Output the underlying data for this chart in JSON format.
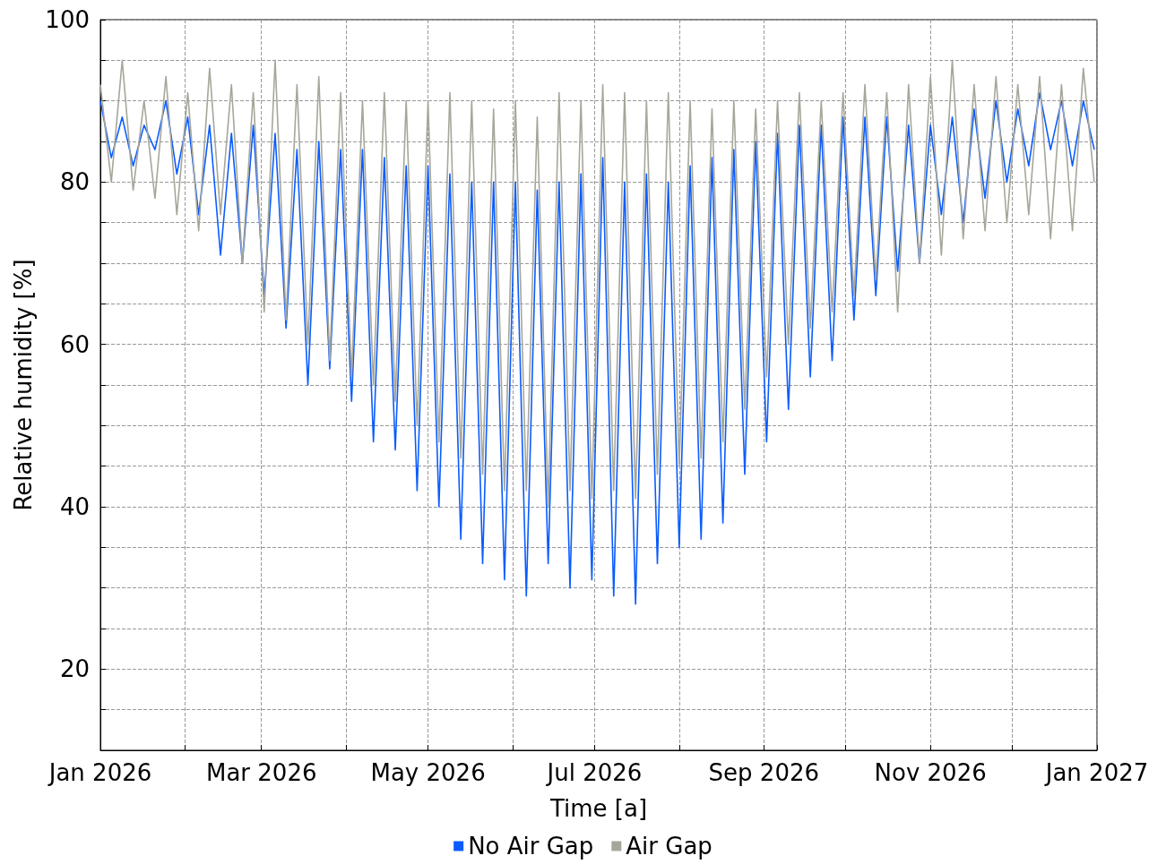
{
  "chart_data": {
    "type": "line",
    "xlabel": "Time [a]",
    "ylabel": "Relative humidity [%]",
    "x": [
      "2026-01-01",
      "2026-01-05",
      "2026-01-09",
      "2026-01-13",
      "2026-01-17",
      "2026-01-21",
      "2026-01-25",
      "2026-01-29",
      "2026-02-02",
      "2026-02-06",
      "2026-02-10",
      "2026-02-14",
      "2026-02-18",
      "2026-02-22",
      "2026-02-26",
      "2026-03-02",
      "2026-03-06",
      "2026-03-10",
      "2026-03-14",
      "2026-03-18",
      "2026-03-22",
      "2026-03-26",
      "2026-03-30",
      "2026-04-03",
      "2026-04-07",
      "2026-04-11",
      "2026-04-15",
      "2026-04-19",
      "2026-04-23",
      "2026-04-27",
      "2026-05-01",
      "2026-05-05",
      "2026-05-09",
      "2026-05-13",
      "2026-05-17",
      "2026-05-21",
      "2026-05-25",
      "2026-05-29",
      "2026-06-02",
      "2026-06-06",
      "2026-06-10",
      "2026-06-14",
      "2026-06-18",
      "2026-06-22",
      "2026-06-26",
      "2026-06-30",
      "2026-07-04",
      "2026-07-08",
      "2026-07-12",
      "2026-07-16",
      "2026-07-20",
      "2026-07-24",
      "2026-07-28",
      "2026-08-01",
      "2026-08-05",
      "2026-08-09",
      "2026-08-13",
      "2026-08-17",
      "2026-08-21",
      "2026-08-25",
      "2026-08-29",
      "2026-09-02",
      "2026-09-06",
      "2026-09-10",
      "2026-09-14",
      "2026-09-18",
      "2026-09-22",
      "2026-09-26",
      "2026-09-30",
      "2026-10-04",
      "2026-10-08",
      "2026-10-12",
      "2026-10-16",
      "2026-10-20",
      "2026-10-24",
      "2026-10-28",
      "2026-11-01",
      "2026-11-05",
      "2026-11-09",
      "2026-11-13",
      "2026-11-17",
      "2026-11-21",
      "2026-11-25",
      "2026-11-29",
      "2026-12-03",
      "2026-12-07",
      "2026-12-11",
      "2026-12-15",
      "2026-12-19",
      "2026-12-23",
      "2026-12-27",
      "2026-12-31"
    ],
    "series": [
      {
        "name": "No Air Gap",
        "color": "#0a5cff",
        "values": [
          90,
          83,
          88,
          82,
          87,
          84,
          90,
          81,
          88,
          76,
          87,
          71,
          86,
          70,
          87,
          66,
          86,
          62,
          84,
          55,
          85,
          57,
          84,
          53,
          84,
          48,
          83,
          47,
          82,
          42,
          82,
          40,
          81,
          36,
          80,
          33,
          80,
          31,
          80,
          29,
          79,
          33,
          80,
          30,
          81,
          31,
          83,
          29,
          80,
          28,
          81,
          33,
          80,
          35,
          82,
          36,
          83,
          38,
          84,
          44,
          85,
          48,
          86,
          52,
          87,
          56,
          87,
          58,
          88,
          63,
          88,
          66,
          88,
          69,
          87,
          70,
          87,
          76,
          88,
          75,
          89,
          78,
          90,
          80,
          89,
          82,
          91,
          84,
          90,
          82,
          90,
          84
        ]
      },
      {
        "name": "Air Gap",
        "color": "#a6a69a",
        "values": [
          92,
          80,
          95,
          79,
          90,
          78,
          93,
          76,
          91,
          74,
          94,
          76,
          92,
          70,
          91,
          64,
          95,
          63,
          92,
          60,
          93,
          58,
          91,
          56,
          90,
          55,
          91,
          53,
          90,
          50,
          90,
          48,
          91,
          46,
          90,
          44,
          89,
          42,
          90,
          42,
          88,
          40,
          91,
          42,
          90,
          41,
          92,
          42,
          91,
          41,
          90,
          44,
          91,
          45,
          90,
          46,
          89,
          48,
          90,
          52,
          89,
          56,
          90,
          60,
          91,
          62,
          90,
          64,
          91,
          66,
          92,
          68,
          91,
          64,
          92,
          70,
          93,
          71,
          95,
          73,
          92,
          74,
          93,
          75,
          92,
          76,
          93,
          73,
          92,
          74,
          94,
          80
        ]
      }
    ],
    "xlim": [
      "2026-01-01",
      "2027-01-01"
    ],
    "xticks": [
      {
        "value": "2026-01",
        "label": "Jan 2026"
      },
      {
        "value": "2026-02",
        "label": null
      },
      {
        "value": "2026-03",
        "label": "Mar 2026"
      },
      {
        "value": "2026-04",
        "label": null
      },
      {
        "value": "2026-05",
        "label": "May 2026"
      },
      {
        "value": "2026-06",
        "label": null
      },
      {
        "value": "2026-07",
        "label": "Jul 2026"
      },
      {
        "value": "2026-08",
        "label": null
      },
      {
        "value": "2026-09",
        "label": "Sep 2026"
      },
      {
        "value": "2026-10",
        "label": null
      },
      {
        "value": "2026-11",
        "label": "Nov 2026"
      },
      {
        "value": "2026-12",
        "label": null
      },
      {
        "value": "2027-01",
        "label": "Jan 2027"
      }
    ],
    "ylim": [
      10,
      100
    ],
    "yticks": [
      {
        "value": 15,
        "label": null
      },
      20,
      {
        "value": 25,
        "label": null
      },
      {
        "value": 30,
        "label": null
      },
      {
        "value": 35,
        "label": null
      },
      40,
      {
        "value": 45,
        "label": null
      },
      {
        "value": 50,
        "label": null
      },
      {
        "value": 55,
        "label": null
      },
      60,
      {
        "value": 65,
        "label": null
      },
      {
        "value": 70,
        "label": null
      },
      {
        "value": 75,
        "label": null
      },
      80,
      {
        "value": 85,
        "label": null
      },
      {
        "value": 90,
        "label": null
      },
      {
        "value": 95,
        "label": null
      },
      100
    ],
    "grid": true,
    "legend": "bottom",
    "marker": "none",
    "line_style": "solid"
  }
}
